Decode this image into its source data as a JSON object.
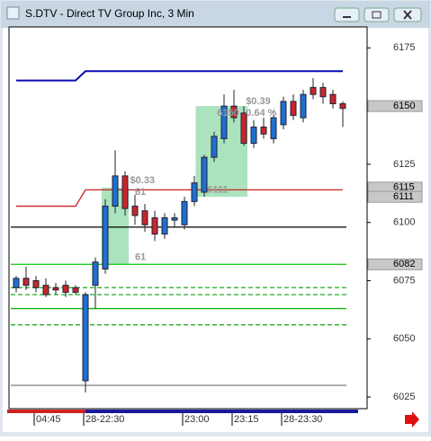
{
  "chart_data": {
    "type": "candlestick",
    "title": "S.DTV - Direct TV Group Inc, 3 Min",
    "categories": [
      null,
      null,
      "04:45",
      null,
      null,
      null,
      null,
      "28-22:30",
      null,
      null,
      null,
      null,
      null,
      null,
      null,
      null,
      null,
      "23:00",
      null,
      null,
      null,
      null,
      "23:15",
      null,
      null,
      null,
      null,
      "28-23:30",
      null,
      null,
      null,
      null,
      null,
      null
    ],
    "open": [
      6072,
      6076,
      6075,
      6073,
      6072,
      6073,
      6072,
      6032,
      6073,
      6080,
      6107,
      6120,
      6107,
      6105,
      6102,
      6095,
      6101,
      6099,
      6109,
      6113,
      6128,
      6136,
      6150,
      6147,
      6134,
      6141,
      6136,
      6142,
      6152,
      6145,
      6158,
      6158,
      6155,
      6151
    ],
    "high": [
      6077,
      6081,
      6077,
      6076,
      6074,
      6075,
      6073,
      6070,
      6085,
      6110,
      6131,
      6122,
      6112,
      6108,
      6105,
      6104,
      6104,
      6111,
      6120,
      6129,
      6139,
      6155,
      6157,
      6150,
      6144,
      6145,
      6148,
      6154,
      6155,
      6157,
      6162,
      6160,
      6157,
      6152
    ],
    "low": [
      6070,
      6071,
      6070,
      6068,
      6069,
      6068,
      6069,
      6027,
      6063,
      6078,
      6104,
      6103,
      6099,
      6096,
      6092,
      6093,
      6098,
      6097,
      6107,
      6111,
      6126,
      6134,
      6143,
      6133,
      6132,
      6136,
      6134,
      6140,
      6144,
      6143,
      6153,
      6151,
      6149,
      6141
    ],
    "close": [
      6076,
      6073,
      6072,
      6069,
      6071,
      6070,
      6070,
      6069,
      6083,
      6107,
      6120,
      6106,
      6103,
      6099,
      6095,
      6102,
      6102,
      6109,
      6117,
      6128,
      6137,
      6150,
      6145,
      6134,
      6141,
      6138,
      6145,
      6152,
      6146,
      6155,
      6155,
      6154,
      6151,
      6149
    ],
    "up_color": "#1f6fd1",
    "down_color": "#c8262c",
    "series": [
      {
        "color": "#0a0ab4",
        "values": [
          6161,
          6161,
          6161,
          6161,
          6161,
          6161,
          6161,
          6165,
          6165,
          6165,
          6165,
          6165,
          6165,
          6165,
          6165,
          6165,
          6165,
          6165,
          6165,
          6165,
          6165,
          6165,
          6165,
          6165,
          6165,
          6165,
          6165,
          6165,
          6165,
          6165,
          6165,
          6165,
          6165,
          6165
        ]
      },
      {
        "color": "#cc2222",
        "values": [
          6107,
          6107,
          6107,
          6107,
          6107,
          6107,
          6107,
          6114,
          6114,
          6114,
          6114,
          6114,
          6114,
          6114,
          6114,
          6114,
          6114,
          6114,
          6114,
          6114,
          6114,
          6114,
          6114,
          6114,
          6114,
          6114,
          6114,
          6114,
          6114,
          6114,
          6114,
          6114,
          6114,
          6114
        ]
      }
    ],
    "levels": [
      {
        "value": 6098,
        "color": "#000000",
        "dashed": false
      },
      {
        "value": 6082,
        "color": "#22cc22",
        "dashed": false
      },
      {
        "value": 6072,
        "color": "#22aa22",
        "dashed": true
      },
      {
        "value": 6069,
        "color": "#22aa22",
        "dashed": true
      },
      {
        "value": 6063,
        "color": "#11bb11",
        "dashed": false
      },
      {
        "value": 6056,
        "color": "#22aa22",
        "dashed": true
      },
      {
        "value": 6030,
        "color": "#888888",
        "dashed": false
      }
    ],
    "zones": [
      {
        "x": [
          9,
          11
        ],
        "y": [
          6082,
          6115
        ]
      },
      {
        "x": [
          18.5,
          23
        ],
        "y": [
          6111,
          6150
        ]
      }
    ],
    "annotations": [
      {
        "text": "$0.33",
        "at": [
          11.5,
          6118
        ],
        "color": "#999999"
      },
      {
        "text": "61",
        "at": [
          12,
          6113
        ],
        "color": "#999999"
      },
      {
        "text": "61",
        "at": [
          12,
          6085
        ],
        "color": "#999999"
      },
      {
        "text": "$0.39",
        "at": [
          23.2,
          6152
        ],
        "color": "#999999"
      },
      {
        "text": "6150",
        "at": [
          20.3,
          6147
        ],
        "color": "#999999"
      },
      {
        "text": "0.64 %",
        "at": [
          23.2,
          6147
        ],
        "color": "#999999"
      },
      {
        "text": "6111",
        "at": [
          19.3,
          6114
        ],
        "color": "#999999"
      }
    ],
    "ylim": [
      6020,
      6184
    ],
    "yticks": [
      6025,
      6050,
      6075,
      6100,
      6125,
      6150,
      6175
    ],
    "price_markers": [
      6150,
      6115,
      6111,
      6082
    ]
  }
}
